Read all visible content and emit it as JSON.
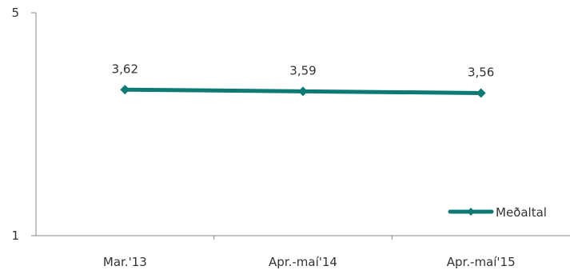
{
  "chart_data": {
    "type": "line",
    "categories": [
      "Mar.'13",
      "Apr.-maí'14",
      "Apr.-maí'15"
    ],
    "series": [
      {
        "name": "Meðaltal",
        "values": [
          3.62,
          3.59,
          3.56
        ],
        "value_labels": [
          "3,62",
          "3,59",
          "3,56"
        ],
        "color": "#0d7a76",
        "marker": "diamond"
      }
    ],
    "y_ticks": [
      "1",
      "5"
    ],
    "ylim": [
      1,
      5
    ],
    "grid": false,
    "legend_position": "bottom-right"
  }
}
